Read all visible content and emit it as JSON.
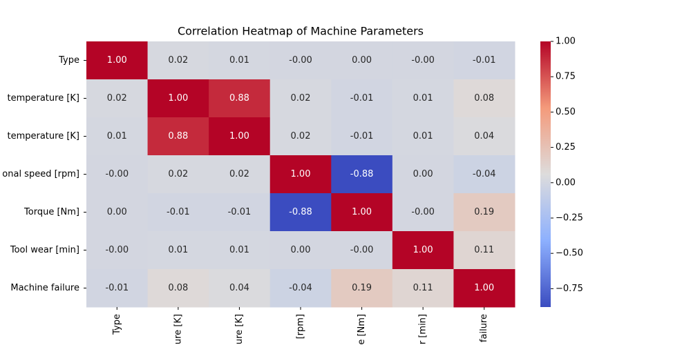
{
  "chart_data": {
    "type": "heatmap",
    "title": "Correlation Heatmap of Machine Parameters",
    "row_labels": [
      "Type",
      "temperature [K]",
      "temperature [K]",
      "onal speed [rpm]",
      "Torque [Nm]",
      "Tool wear [min]",
      "Machine failure"
    ],
    "col_labels": [
      "Type",
      "ure [K]",
      "ure [K]",
      "[rpm]",
      "e [Nm]",
      "r [min]",
      "failure"
    ],
    "values": [
      [
        1,
        0.02,
        0.01,
        0,
        0,
        0,
        -0.01
      ],
      [
        0.02,
        1,
        0.88,
        0.02,
        -0.01,
        0.01,
        0.08
      ],
      [
        0.01,
        0.88,
        1,
        0.02,
        -0.01,
        0.01,
        0.04
      ],
      [
        0,
        0.02,
        0.02,
        1,
        -0.88,
        0,
        -0.04
      ],
      [
        0,
        -0.01,
        -0.01,
        -0.88,
        1,
        0,
        0.19
      ],
      [
        0,
        0.01,
        0.01,
        0,
        0,
        1,
        0.11
      ],
      [
        -0.01,
        0.08,
        0.04,
        -0.04,
        0.19,
        0.11,
        1
      ]
    ],
    "value_labels": [
      [
        "1.00",
        "0.02",
        "0.01",
        "-0.00",
        "0.00",
        "-0.00",
        "-0.01"
      ],
      [
        "0.02",
        "1.00",
        "0.88",
        "0.02",
        "-0.01",
        "0.01",
        "0.08"
      ],
      [
        "0.01",
        "0.88",
        "1.00",
        "0.02",
        "-0.01",
        "0.01",
        "0.04"
      ],
      [
        "-0.00",
        "0.02",
        "0.02",
        "1.00",
        "-0.88",
        "0.00",
        "-0.04"
      ],
      [
        "0.00",
        "-0.01",
        "-0.01",
        "-0.88",
        "1.00",
        "-0.00",
        "0.19"
      ],
      [
        "-0.00",
        "0.01",
        "0.01",
        "0.00",
        "-0.00",
        "1.00",
        "0.11"
      ],
      [
        "-0.01",
        "0.08",
        "0.04",
        "-0.04",
        "0.19",
        "0.11",
        "1.00"
      ]
    ],
    "colormap": [
      "#3b4cc0",
      "#8db0fe",
      "#dddcdc",
      "#f49a7b",
      "#b40426"
    ],
    "clim": [
      -0.88,
      1
    ],
    "cticks": [
      {
        "value": 1,
        "label": "1.00"
      },
      {
        "value": 0.75,
        "label": "0.75"
      },
      {
        "value": 0.5,
        "label": "0.50"
      },
      {
        "value": 0.25,
        "label": "0.25"
      },
      {
        "value": 0,
        "label": "0.00"
      },
      {
        "value": -0.25,
        "label": "−0.25"
      },
      {
        "value": -0.5,
        "label": "−0.50"
      },
      {
        "value": -0.75,
        "label": "−0.75"
      }
    ]
  }
}
